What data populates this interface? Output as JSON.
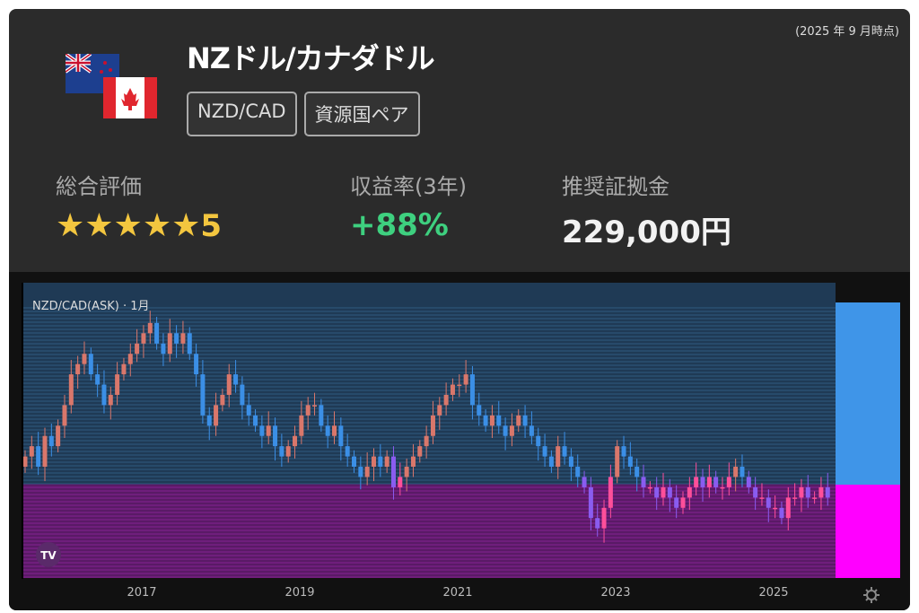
{
  "header": {
    "as_of": "(2025 年 9 月時点)",
    "title": "NZドル/カナダドル",
    "tags": [
      "NZD/CAD",
      "資源国ペア"
    ],
    "icons": [
      "nz-flag-icon",
      "canada-flag-icon"
    ]
  },
  "metrics": {
    "rating": {
      "label": "総合評価",
      "stars": "★★★★★",
      "value": "5",
      "rating_of_5": 5
    },
    "return": {
      "label": "収益率(3年)",
      "value": "+88%"
    },
    "margin": {
      "label": "推奨証拠金",
      "value": "229,000円"
    }
  },
  "colors": {
    "star": "#f3c63f",
    "return": "#3ed07f",
    "up_upper": "#d9776b",
    "down_upper": "#3b8fe6",
    "up_lower": "#ff4f9a",
    "down_lower": "#8a5cf0",
    "price_marker": "#ff00ff",
    "axis_panel": "#3f95e8"
  },
  "chart_data": {
    "type": "candlestick",
    "title": "NZD/CAD(ASK) · 1月",
    "x_tick_labels": [
      "2017",
      "2019",
      "2021",
      "2023",
      "2025"
    ],
    "start": "2015-07",
    "interval": "1 month",
    "ylim": [
      0.75,
      1.0
    ],
    "closes": [
      0.85,
      0.86,
      0.84,
      0.87,
      0.86,
      0.88,
      0.9,
      0.93,
      0.94,
      0.95,
      0.93,
      0.92,
      0.9,
      0.91,
      0.93,
      0.94,
      0.95,
      0.96,
      0.97,
      0.98,
      0.96,
      0.95,
      0.97,
      0.96,
      0.97,
      0.95,
      0.93,
      0.89,
      0.88,
      0.9,
      0.91,
      0.93,
      0.92,
      0.9,
      0.89,
      0.88,
      0.87,
      0.88,
      0.86,
      0.85,
      0.86,
      0.87,
      0.89,
      0.9,
      0.9,
      0.88,
      0.87,
      0.88,
      0.86,
      0.85,
      0.84,
      0.83,
      0.84,
      0.85,
      0.84,
      0.85,
      0.82,
      0.83,
      0.84,
      0.85,
      0.86,
      0.87,
      0.89,
      0.9,
      0.91,
      0.92,
      0.92,
      0.93,
      0.9,
      0.89,
      0.88,
      0.89,
      0.88,
      0.87,
      0.88,
      0.89,
      0.88,
      0.87,
      0.86,
      0.85,
      0.84,
      0.86,
      0.85,
      0.84,
      0.83,
      0.82,
      0.79,
      0.78,
      0.8,
      0.83,
      0.86,
      0.85,
      0.84,
      0.83,
      0.82,
      0.82,
      0.81,
      0.82,
      0.81,
      0.8,
      0.81,
      0.82,
      0.83,
      0.82,
      0.83,
      0.82,
      0.82,
      0.83,
      0.84,
      0.83,
      0.82,
      0.81,
      0.81,
      0.8,
      0.8,
      0.79,
      0.81,
      0.81,
      0.82,
      0.81,
      0.81,
      0.82,
      0.81
    ],
    "current_price_zone_threshold": 0.823,
    "logo": "TV",
    "settings_icon": "gear-icon"
  }
}
